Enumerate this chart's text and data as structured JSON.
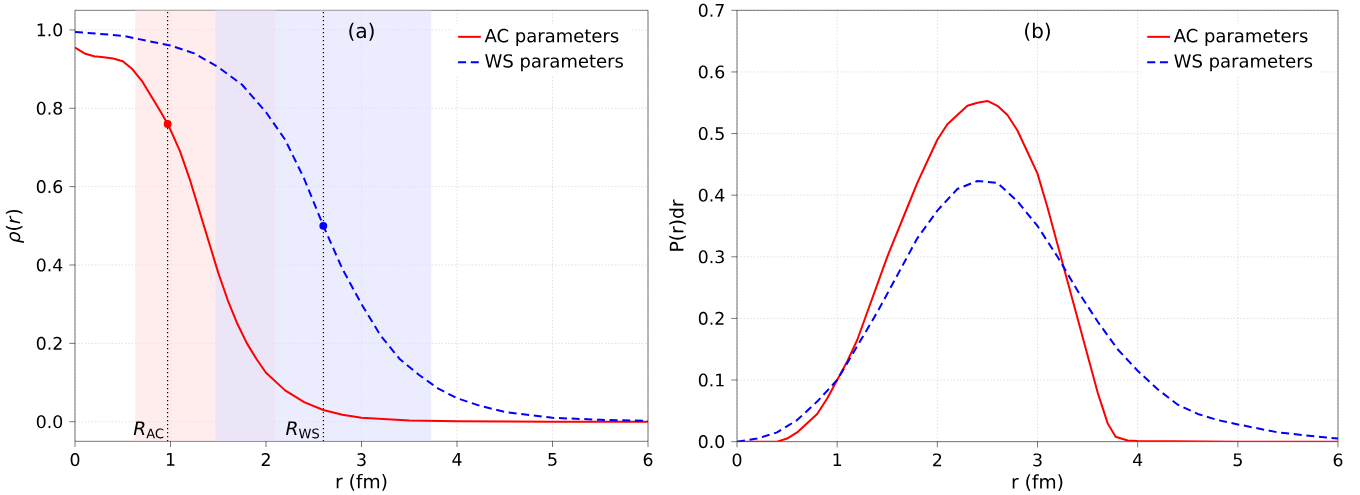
{
  "chart_data": [
    {
      "type": "line",
      "xlabel": "r (fm)",
      "ylabel": "*ρ*(*r*)",
      "annotations": [
        "(a)"
      ],
      "xlim": [
        0,
        6
      ],
      "ylim": [
        -0.05,
        1.05
      ],
      "xticks": [
        0,
        1,
        2,
        3,
        4,
        5,
        6
      ],
      "yticks": [
        {
          "value": 0,
          "label": "0.0"
        },
        {
          "value": 0.2,
          "label": "0.2"
        },
        {
          "value": 0.4,
          "label": "0.4"
        },
        {
          "value": 0.6,
          "label": "0.6"
        },
        {
          "value": 0.8,
          "label": "0.8"
        },
        {
          "value": 1.0,
          "label": "1.0"
        }
      ],
      "grid": true,
      "legend": "top right",
      "bands": [
        {
          "axis": "x",
          "from": 0.63,
          "to": 2.1,
          "color": "#ffe0e0"
        },
        {
          "axis": "x",
          "from": 1.47,
          "to": 3.73,
          "color": "#e0e0ff"
        }
      ],
      "ref_lines": [
        {
          "axis": "x",
          "value": 0.97,
          "label": "*R*$_{AC}$",
          "color": "#000000",
          "line_style": "dotted"
        },
        {
          "axis": "x",
          "value": 2.6,
          "label": "*R*$_{WS}$",
          "color": "#000000",
          "line_style": "dotted"
        }
      ],
      "series": [
        {
          "name": "AC parameters",
          "color": "#ff0000",
          "line_style": "solid",
          "marker": "none",
          "x": [
            0,
            0.1,
            0.2,
            0.3,
            0.4,
            0.5,
            0.6,
            0.7,
            0.8,
            0.9,
            0.97,
            1.0,
            1.1,
            1.2,
            1.3,
            1.4,
            1.5,
            1.6,
            1.7,
            1.8,
            1.9,
            2.0,
            2.2,
            2.4,
            2.6,
            2.8,
            3.0,
            3.5,
            4.0,
            5.0,
            6.0
          ],
          "values": [
            0.955,
            0.94,
            0.933,
            0.93,
            0.927,
            0.92,
            0.9,
            0.87,
            0.83,
            0.79,
            0.76,
            0.745,
            0.69,
            0.62,
            0.54,
            0.46,
            0.38,
            0.31,
            0.25,
            0.2,
            0.16,
            0.125,
            0.08,
            0.05,
            0.03,
            0.018,
            0.01,
            0.003,
            0.001,
            0,
            0
          ]
        },
        {
          "name": "WS parameters",
          "color": "#0000ff",
          "line_style": "dashed",
          "marker": "none",
          "x": [
            0,
            0.5,
            1.0,
            1.25,
            1.5,
            1.75,
            2.0,
            2.2,
            2.4,
            2.6,
            2.8,
            3.0,
            3.2,
            3.4,
            3.6,
            3.8,
            4.0,
            4.25,
            4.5,
            5.0,
            5.5,
            6.0
          ],
          "values": [
            0.995,
            0.985,
            0.96,
            0.94,
            0.905,
            0.86,
            0.79,
            0.72,
            0.62,
            0.5,
            0.39,
            0.3,
            0.22,
            0.16,
            0.12,
            0.085,
            0.06,
            0.04,
            0.025,
            0.01,
            0.005,
            0.002
          ]
        },
        {
          "type": "scatter",
          "color": "#ff0000",
          "marker": "circle",
          "x": [
            0.97
          ],
          "values": [
            0.76
          ]
        },
        {
          "type": "scatter",
          "color": "#0000ff",
          "marker": "circle",
          "x": [
            2.6
          ],
          "values": [
            0.5
          ]
        }
      ]
    },
    {
      "type": "line",
      "xlabel": "r (fm)",
      "ylabel": "P(r)dr",
      "annotations": [
        "(b)"
      ],
      "xlim": [
        0,
        6
      ],
      "ylim": [
        0,
        0.7
      ],
      "xticks": [
        0,
        1,
        2,
        3,
        4,
        5,
        6
      ],
      "yticks": [
        {
          "value": 0,
          "label": "0.0"
        },
        {
          "value": 0.1,
          "label": "0.1"
        },
        {
          "value": 0.2,
          "label": "0.2"
        },
        {
          "value": 0.3,
          "label": "0.3"
        },
        {
          "value": 0.4,
          "label": "0.4"
        },
        {
          "value": 0.5,
          "label": "0.5"
        },
        {
          "value": 0.6,
          "label": "0.6"
        },
        {
          "value": 0.7,
          "label": "0.7"
        }
      ],
      "grid": true,
      "legend": "top right",
      "series": [
        {
          "name": "AC parameters",
          "color": "#ff0000",
          "line_style": "solid",
          "marker": "none",
          "x": [
            0,
            0.4,
            0.5,
            0.6,
            0.7,
            0.8,
            0.9,
            1.0,
            1.1,
            1.2,
            1.3,
            1.4,
            1.5,
            1.6,
            1.7,
            1.8,
            1.9,
            2.0,
            2.1,
            2.2,
            2.3,
            2.4,
            2.5,
            2.6,
            2.7,
            2.8,
            2.9,
            3.0,
            3.1,
            3.2,
            3.3,
            3.4,
            3.5,
            3.6,
            3.7,
            3.78,
            3.9,
            4.0,
            5.0,
            6.0
          ],
          "values": [
            0,
            0,
            0.005,
            0.015,
            0.03,
            0.045,
            0.07,
            0.1,
            0.13,
            0.165,
            0.21,
            0.255,
            0.3,
            0.34,
            0.38,
            0.42,
            0.455,
            0.49,
            0.515,
            0.53,
            0.545,
            0.55,
            0.553,
            0.545,
            0.53,
            0.505,
            0.47,
            0.435,
            0.38,
            0.32,
            0.26,
            0.2,
            0.14,
            0.08,
            0.03,
            0.008,
            0.002,
            0.001,
            0,
            0
          ]
        },
        {
          "name": "WS parameters",
          "color": "#0000ff",
          "line_style": "dashed",
          "marker": "none",
          "x": [
            0,
            0.2,
            0.4,
            0.6,
            0.8,
            1.0,
            1.2,
            1.4,
            1.6,
            1.8,
            2.0,
            2.2,
            2.4,
            2.6,
            2.8,
            3.0,
            3.2,
            3.4,
            3.6,
            3.8,
            4.0,
            4.2,
            4.4,
            4.6,
            4.8,
            5.0,
            5.4,
            5.8,
            6.0
          ],
          "values": [
            0,
            0.005,
            0.015,
            0.035,
            0.065,
            0.1,
            0.155,
            0.21,
            0.27,
            0.33,
            0.375,
            0.41,
            0.423,
            0.42,
            0.39,
            0.35,
            0.3,
            0.245,
            0.195,
            0.15,
            0.115,
            0.085,
            0.06,
            0.045,
            0.035,
            0.028,
            0.015,
            0.008,
            0.005
          ]
        }
      ]
    }
  ]
}
